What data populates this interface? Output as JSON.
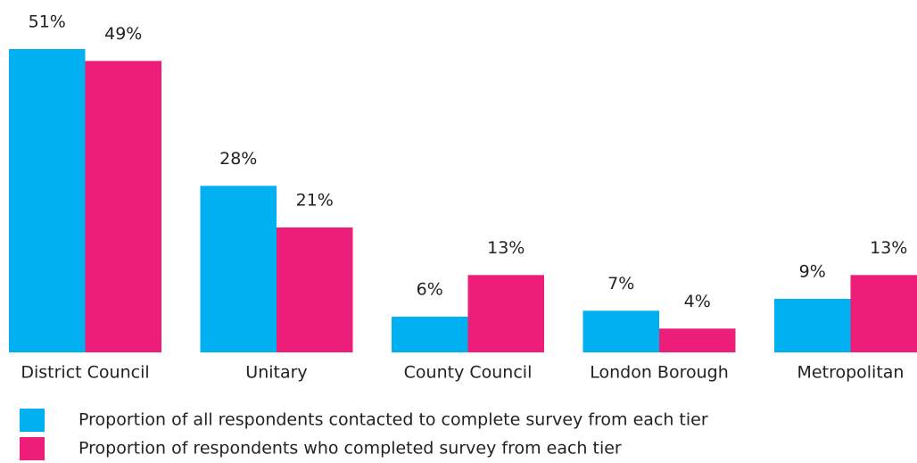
{
  "chart_data": {
    "type": "bar",
    "categories": [
      "District Council",
      "Unitary",
      "County Council",
      "London Borough",
      "Metropolitan"
    ],
    "series": [
      {
        "name": "Proportion of all respondents contacted to complete survey from each tier",
        "color": "#00b0f0",
        "values": [
          51,
          28,
          6,
          7,
          9
        ],
        "value_labels": [
          "51%",
          "28%",
          "6%",
          "7%",
          "9%"
        ]
      },
      {
        "name": "Proportion of respondents who completed survey from each tier",
        "color": "#ed1e79",
        "values": [
          49,
          21,
          13,
          4,
          13
        ],
        "value_labels": [
          "49%",
          "21%",
          "13%",
          "4%",
          "13%"
        ]
      }
    ],
    "ylim": [
      0,
      51
    ]
  }
}
